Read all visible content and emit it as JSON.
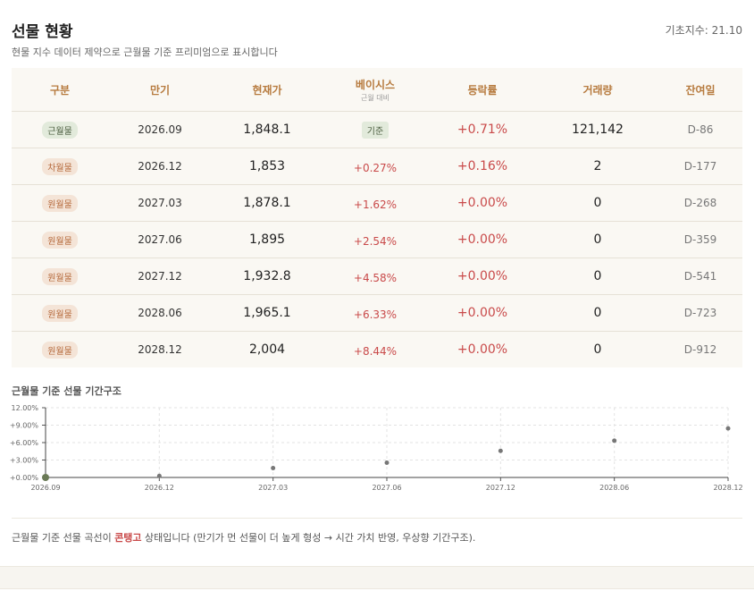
{
  "header": {
    "title": "선물 현황",
    "base_index_label": "기초지수: 21.10",
    "subtitle": "현물 지수 데이터 제약으로 근월물 기준 프리미엄으로 표시합니다"
  },
  "table": {
    "headers": {
      "type": "구분",
      "maturity": "만기",
      "price": "현재가",
      "basis": "베이시스",
      "basis_sub": "근월 대비",
      "change": "등락률",
      "volume": "거래량",
      "days": "잔여일"
    },
    "rows": [
      {
        "type": "근월물",
        "maturity": "2026.09",
        "price": "1,848.1",
        "basis": "기준",
        "change": "+0.71%",
        "volume": "121,142",
        "days": "D-86"
      },
      {
        "type": "차월물",
        "maturity": "2026.12",
        "price": "1,853",
        "basis": "+0.27%",
        "change": "+0.16%",
        "volume": "2",
        "days": "D-177"
      },
      {
        "type": "원월물",
        "maturity": "2027.03",
        "price": "1,878.1",
        "basis": "+1.62%",
        "change": "+0.00%",
        "volume": "0",
        "days": "D-268"
      },
      {
        "type": "원월물",
        "maturity": "2027.06",
        "price": "1,895",
        "basis": "+2.54%",
        "change": "+0.00%",
        "volume": "0",
        "days": "D-359"
      },
      {
        "type": "원월물",
        "maturity": "2027.12",
        "price": "1,932.8",
        "basis": "+4.58%",
        "change": "+0.00%",
        "volume": "0",
        "days": "D-541"
      },
      {
        "type": "원월물",
        "maturity": "2028.06",
        "price": "1,965.1",
        "basis": "+6.33%",
        "change": "+0.00%",
        "volume": "0",
        "days": "D-723"
      },
      {
        "type": "원월물",
        "maturity": "2028.12",
        "price": "2,004",
        "basis": "+8.44%",
        "change": "+0.00%",
        "volume": "0",
        "days": "D-912"
      }
    ]
  },
  "chart_title": "근월물 기준 선물 기간구조",
  "chart_data": {
    "type": "scatter",
    "x": [
      "2026.09",
      "2026.12",
      "2027.03",
      "2027.06",
      "2027.12",
      "2028.06",
      "2028.12"
    ],
    "values": [
      0.0,
      0.27,
      1.62,
      2.54,
      4.58,
      6.33,
      8.44
    ],
    "y_ticks": [
      "+0.00%",
      "+3.00%",
      "+6.00%",
      "+9.00%",
      "12.00%"
    ],
    "ylim": [
      0,
      12
    ],
    "grid": true,
    "highlight_color": "#6a7a56",
    "point_color": "#777777"
  },
  "note": {
    "before": "근월물 기준 선물 곡선이 ",
    "highlight": "콘탱고",
    "after": " 상태입니다 (만기가 먼 선물이 더 높게 형성 → 시간 가치 반영, 우상향 기간구조)."
  }
}
